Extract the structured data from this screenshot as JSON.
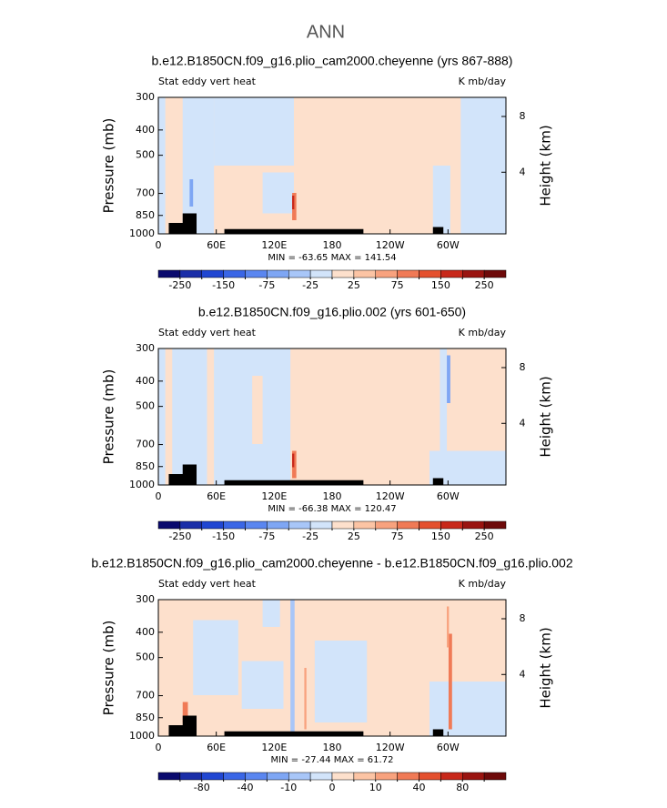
{
  "title": "ANN",
  "chart_data": [
    {
      "type": "contour",
      "title": "b.e12.B1850CN.f09_g16.plio_cam2000.cheyenne (yrs 867-888)",
      "left_label": "Stat eddy vert heat",
      "right_label": "K mb/day",
      "y_label": "Pressure (mb)",
      "y2_label": "Height (km)",
      "xlim": [
        0,
        360
      ],
      "xticks": [
        0,
        {
          "value": 60,
          "label": "60E"
        },
        {
          "value": 120,
          "label": "120E"
        },
        180,
        {
          "value": 240,
          "label": "120W"
        },
        {
          "value": 300,
          "label": "60W"
        }
      ],
      "ylim": [
        1000,
        300
      ],
      "y_scale": "log",
      "yticks": [
        300,
        400,
        500,
        700,
        850,
        1000
      ],
      "y2lim": [
        -0.42,
        9.37
      ],
      "y2ticks": [
        4,
        8
      ],
      "stats": "MIN = -63.65   MAX = 141.54",
      "colorbar": {
        "levels": [
          -250,
          -200,
          -150,
          -100,
          -75,
          -50,
          -25,
          0,
          25,
          50,
          75,
          100,
          150,
          200,
          250
        ],
        "labels": [
          -250,
          -150,
          -75,
          -25,
          25,
          75,
          150,
          250
        ],
        "colors": [
          "#0a0a6e",
          "#1a2ea8",
          "#2046d2",
          "#3a66e6",
          "#5a86f0",
          "#7ea6f4",
          "#a8c6f8",
          "#d2e4fa",
          "#fde0cc",
          "#fcc4a4",
          "#f8a27e",
          "#f07a56",
          "#e4502e",
          "#c8281a",
          "#9a1410",
          "#6e0a0a"
        ]
      }
    },
    {
      "type": "contour",
      "title": "b.e12.B1850CN.f09_g16.plio.002 (yrs 601-650)",
      "left_label": "Stat eddy vert heat",
      "right_label": "K mb/day",
      "y_label": "Pressure (mb)",
      "y2_label": "Height (km)",
      "xlim": [
        0,
        360
      ],
      "xticks": [
        0,
        {
          "value": 60,
          "label": "60E"
        },
        {
          "value": 120,
          "label": "120E"
        },
        180,
        {
          "value": 240,
          "label": "120W"
        },
        {
          "value": 300,
          "label": "60W"
        }
      ],
      "ylim": [
        1000,
        300
      ],
      "y_scale": "log",
      "yticks": [
        300,
        400,
        500,
        700,
        850,
        1000
      ],
      "y2lim": [
        -0.42,
        9.37
      ],
      "y2ticks": [
        4,
        8
      ],
      "stats": "MIN = -66.38   MAX = 120.47",
      "colorbar": {
        "levels": [
          -250,
          -200,
          -150,
          -100,
          -75,
          -50,
          -25,
          0,
          25,
          50,
          75,
          100,
          150,
          200,
          250
        ],
        "labels": [
          -250,
          -150,
          -75,
          -25,
          25,
          75,
          150,
          250
        ],
        "colors": [
          "#0a0a6e",
          "#1a2ea8",
          "#2046d2",
          "#3a66e6",
          "#5a86f0",
          "#7ea6f4",
          "#a8c6f8",
          "#d2e4fa",
          "#fde0cc",
          "#fcc4a4",
          "#f8a27e",
          "#f07a56",
          "#e4502e",
          "#c8281a",
          "#9a1410",
          "#6e0a0a"
        ]
      }
    },
    {
      "type": "contour",
      "title": "b.e12.B1850CN.f09_g16.plio_cam2000.cheyenne - b.e12.B1850CN.f09_g16.plio.002",
      "left_label": "Stat eddy vert heat",
      "right_label": "K mb/day",
      "y_label": "Pressure (mb)",
      "y2_label": "Height (km)",
      "xlim": [
        0,
        360
      ],
      "xticks": [
        0,
        {
          "value": 60,
          "label": "60E"
        },
        {
          "value": 120,
          "label": "120E"
        },
        180,
        {
          "value": 240,
          "label": "120W"
        },
        {
          "value": 300,
          "label": "60W"
        }
      ],
      "ylim": [
        1000,
        300
      ],
      "y_scale": "log",
      "yticks": [
        300,
        400,
        500,
        700,
        850,
        1000
      ],
      "y2lim": [
        -0.42,
        9.37
      ],
      "y2ticks": [
        4,
        8
      ],
      "stats": "MIN = -27.44   MAX = 61.72",
      "colorbar": {
        "levels": [
          -100,
          -80,
          -60,
          -40,
          -20,
          -10,
          -5,
          0,
          5,
          10,
          20,
          40,
          60,
          80,
          100
        ],
        "labels": [
          -80,
          -40,
          -10,
          0,
          10,
          40,
          80
        ],
        "colors": [
          "#0a0a6e",
          "#1a2ea8",
          "#2046d2",
          "#3a66e6",
          "#5a86f0",
          "#7ea6f4",
          "#a8c6f8",
          "#d2e4fa",
          "#fde0cc",
          "#fcc4a4",
          "#f8a27e",
          "#f07a56",
          "#e4502e",
          "#c8281a",
          "#9a1410",
          "#6e0a0a"
        ]
      }
    }
  ]
}
